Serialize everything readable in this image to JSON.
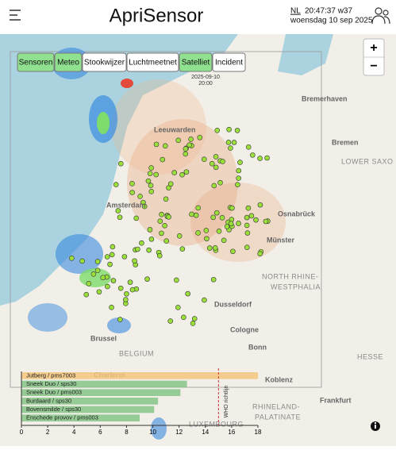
{
  "header": {
    "title": "ApriSensor",
    "language": "NL",
    "time": "20:47:37 w37",
    "date": "woensdag 10 sep 2025"
  },
  "layers": [
    "Sensoren",
    "Meteo",
    "Stookwijzer",
    "Luchtmeetnet",
    "Satelliet",
    "Incident"
  ],
  "active_layers": [
    true,
    true,
    false,
    false,
    true,
    false
  ],
  "zoom": [
    "+",
    "−"
  ],
  "satellite_time": [
    "2025-09-10",
    "20:00"
  ],
  "map_labels": [
    "Bremerhaven",
    "Bremen",
    "LOWER SAXO",
    "Leeuwarden",
    "Amsterdam",
    "Osnabrück",
    "Münster",
    "NORTH RHINE-",
    "WESTPHALIA",
    "Dusseldorf",
    "Cologne",
    "Bonn",
    "HESSE",
    "Brussel",
    "BELGIUM",
    "Charleroi",
    "Koblenz",
    "Frankfurt",
    "RHINELAND-",
    "PALATINATE",
    "LUXEMBOURG"
  ],
  "chart_data": {
    "type": "barh",
    "categories": [
      "Jutberg / pms7003",
      "Sneek Duo / sps30",
      "Sneek Duo / pms003",
      "Burdaard / sps30",
      "Bovensmilde / sps30",
      "Enschede provov / pms003"
    ],
    "values": [
      18,
      12.6,
      12.1,
      10.4,
      10.1,
      9
    ],
    "colors": [
      "#f5c77e",
      "#86c486",
      "#86c486",
      "#86c486",
      "#86c486",
      "#86c486"
    ],
    "xlim": [
      0,
      18
    ],
    "xticks": [
      0,
      2,
      4,
      6,
      8,
      10,
      12,
      14,
      16,
      18
    ],
    "reference_line": {
      "value": 15,
      "label": "WHO richtlijn"
    }
  }
}
